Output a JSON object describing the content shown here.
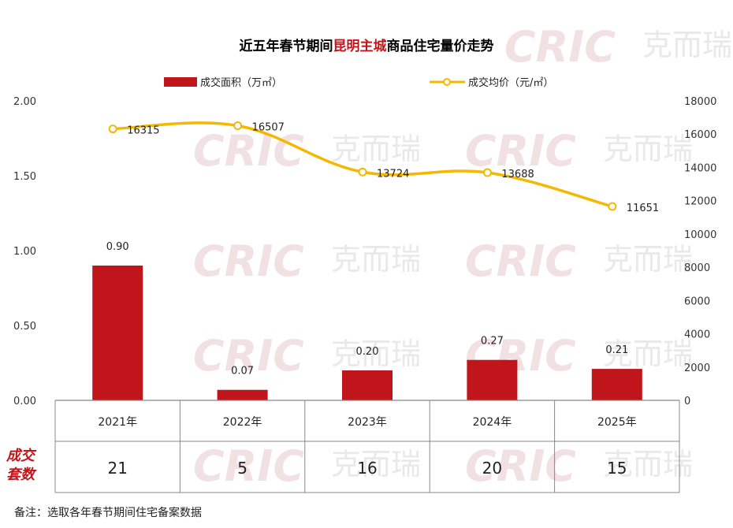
{
  "title": {
    "prefix": "近五年春节期间",
    "highlight": "昆明主城",
    "suffix": "商品住宅量价走势"
  },
  "colors": {
    "bar": "#c0161b",
    "line": "#f5b800",
    "highlight_text": "#c0161b",
    "grid": "#888888"
  },
  "watermark": {
    "latin": "CRIC",
    "cn": "克而瑞"
  },
  "chart_data": {
    "type": "bar",
    "categories": [
      "2021年",
      "2022年",
      "2023年",
      "2024年",
      "2025年"
    ],
    "series": [
      {
        "name": "成交面积（万㎡）",
        "type": "bar",
        "axis": "left",
        "values": [
          0.9,
          0.07,
          0.2,
          0.27,
          0.21
        ],
        "labels": [
          "0.90",
          "0.07",
          "0.20",
          "0.27",
          "0.21"
        ]
      },
      {
        "name": "成交均价（元/㎡）",
        "type": "line",
        "axis": "right",
        "values": [
          16315,
          16507,
          13724,
          13688,
          11651
        ],
        "labels": [
          "16315",
          "16507",
          "13724",
          "13688",
          "11651"
        ]
      }
    ],
    "left_axis": {
      "ylim": [
        0,
        2
      ],
      "ticks": [
        "0.00",
        "0.50",
        "1.00",
        "1.50",
        "2.00"
      ],
      "tick_values": [
        0,
        0.5,
        1,
        1.5,
        2
      ]
    },
    "right_axis": {
      "ylim": [
        0,
        18000
      ],
      "ticks": [
        "0",
        "2000",
        "4000",
        "6000",
        "8000",
        "10000",
        "12000",
        "14000",
        "16000",
        "18000"
      ],
      "tick_values": [
        0,
        2000,
        4000,
        6000,
        8000,
        10000,
        12000,
        14000,
        16000,
        18000
      ]
    },
    "legend_position": "top",
    "grid": false
  },
  "table": {
    "row_header": [
      "成交",
      "套数"
    ],
    "counts": [
      "21",
      "5",
      "16",
      "20",
      "15"
    ]
  },
  "note": "备注：选取各年春节期间住宅备案数据"
}
